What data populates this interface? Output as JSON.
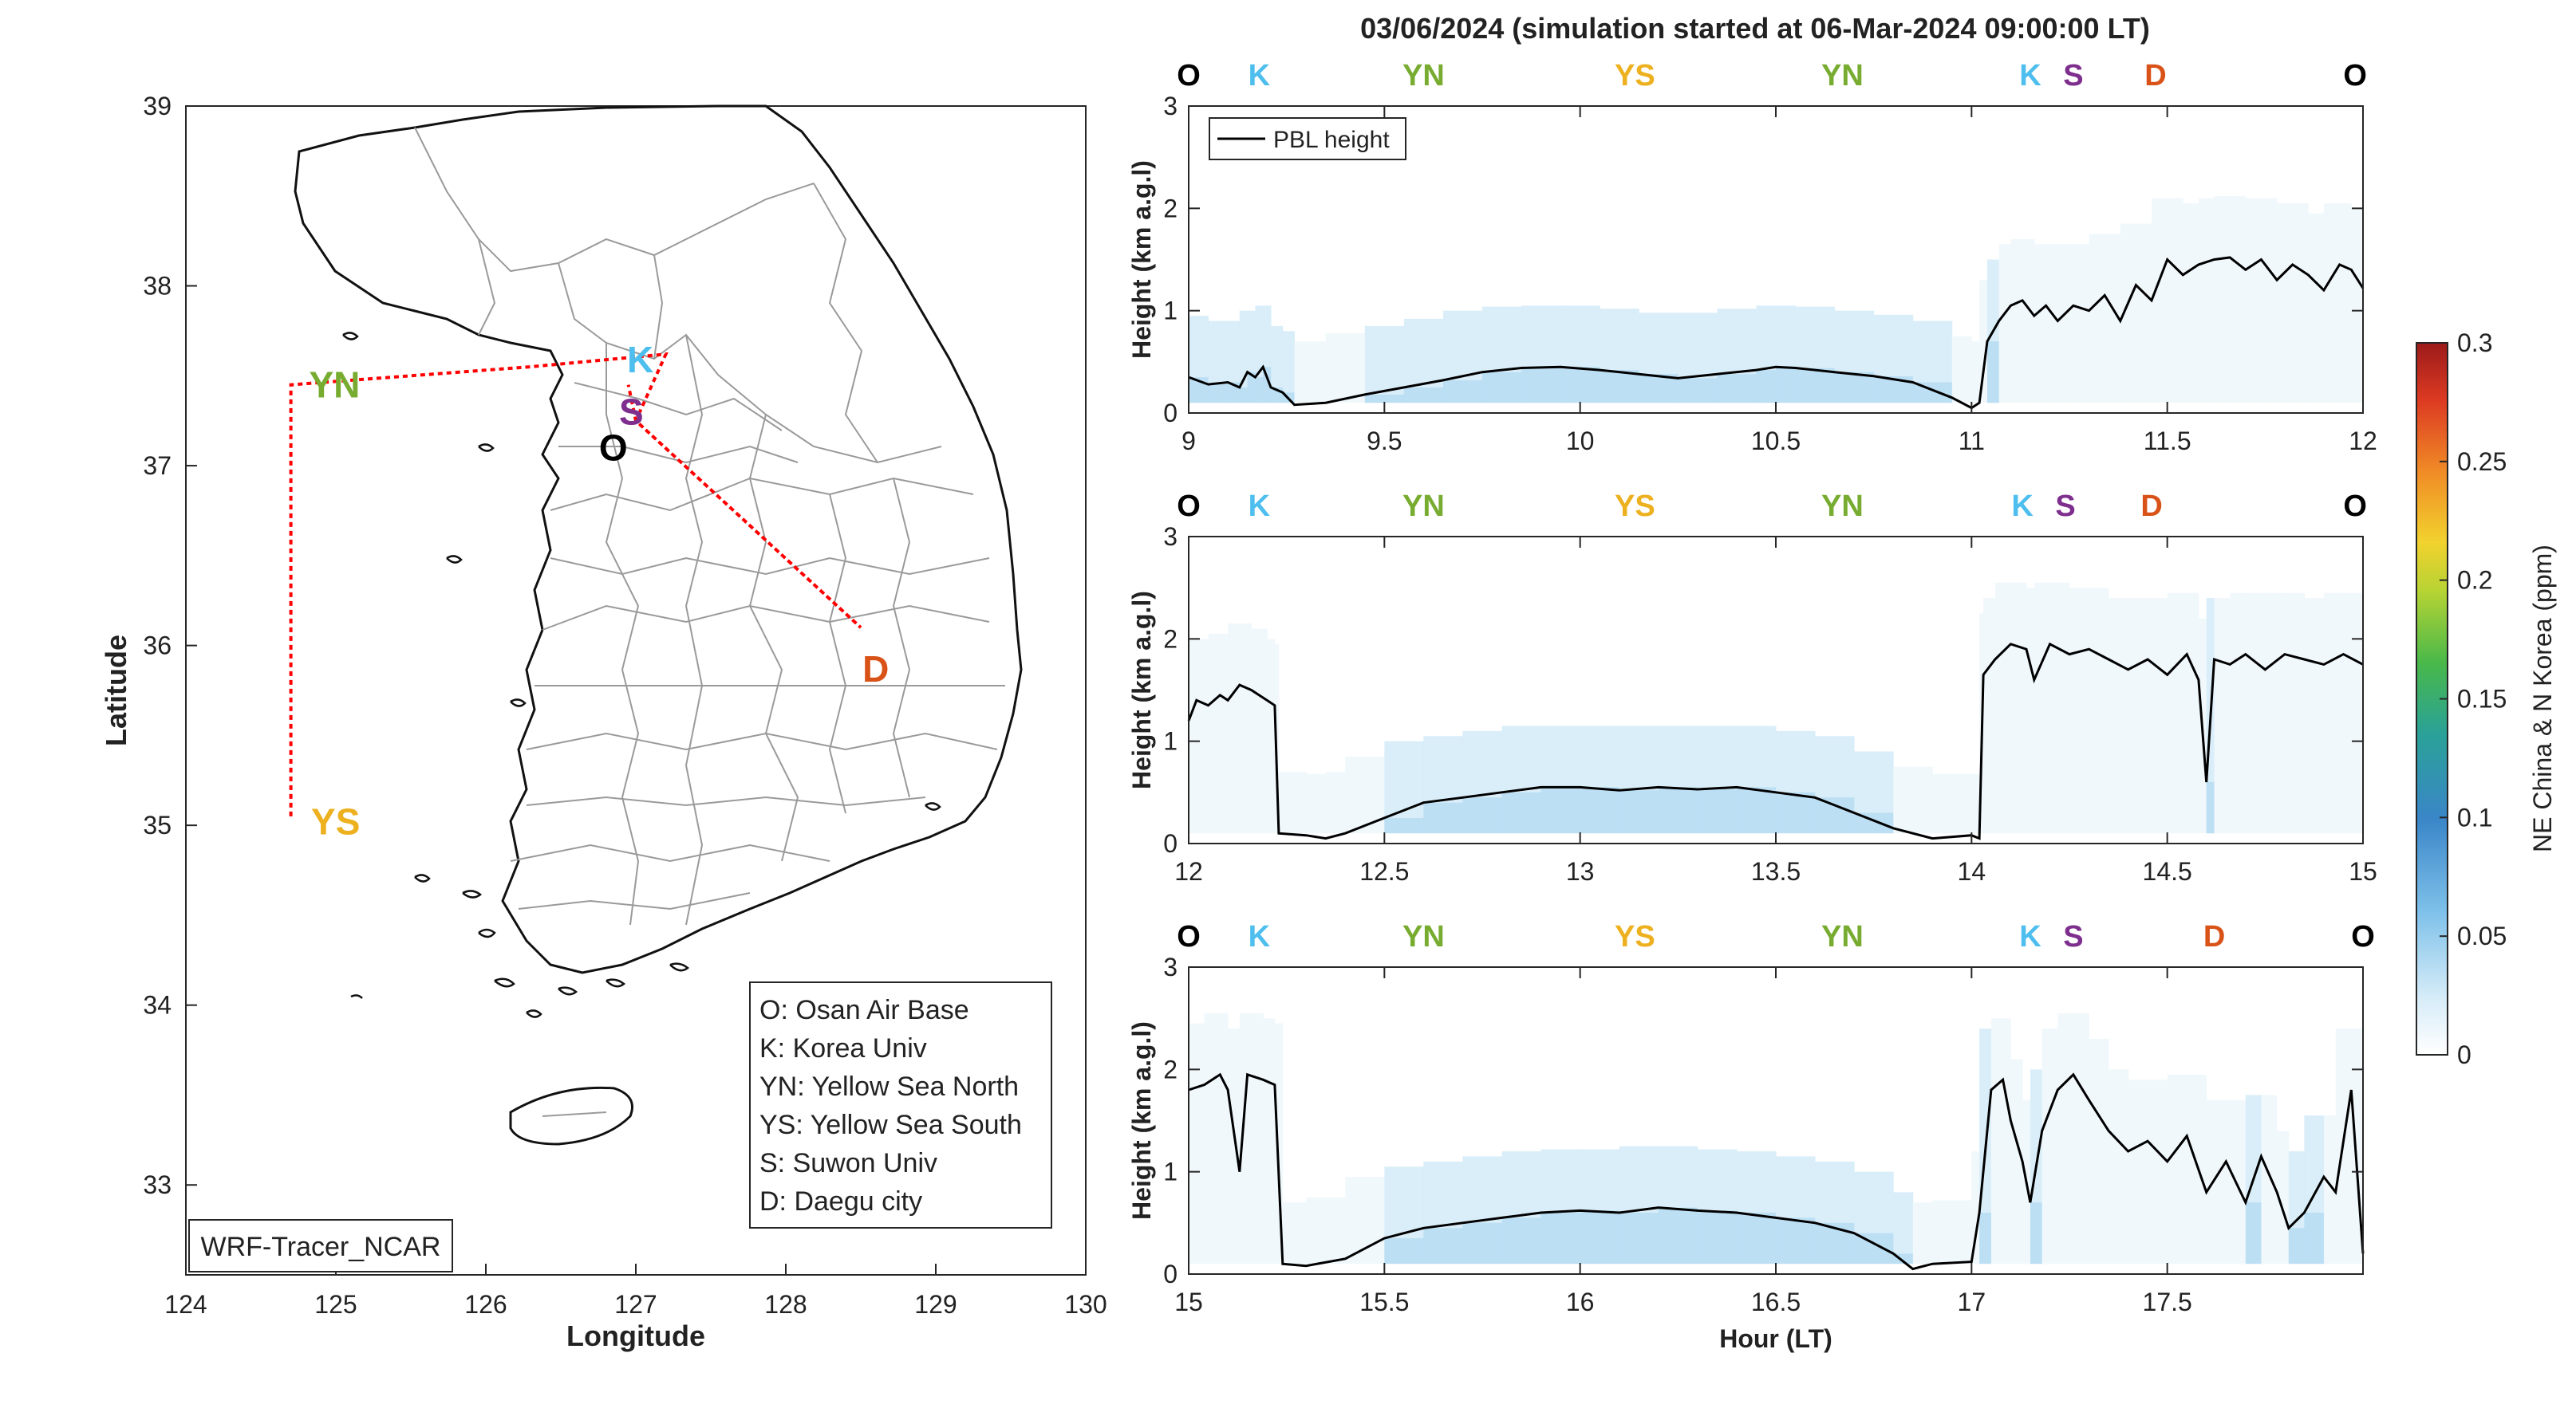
{
  "figure_title": "03/06/2024 (simulation started at 06-Mar-2024 09:00:00 LT)",
  "map": {
    "xlabel": "Longitude",
    "ylabel": "Latitude",
    "xlim": [
      124,
      130
    ],
    "ylim": [
      32.5,
      39
    ],
    "x_ticks": [
      "124",
      "125",
      "126",
      "127",
      "128",
      "129",
      "130"
    ],
    "y_ticks": [
      "33",
      "34",
      "35",
      "36",
      "37",
      "38",
      "39"
    ],
    "model_label": "WRF-Tracer_NCAR",
    "legend": [
      "O: Osan Air Base",
      "K: Korea Univ",
      "YN: Yellow Sea North",
      "YS: Yellow Sea South",
      "S: Suwon Univ",
      "D: Daegu city"
    ],
    "sites": [
      {
        "code": "K",
        "lon": 127.03,
        "lat": 37.59,
        "color": "#4DBEEE"
      },
      {
        "code": "S",
        "lon": 126.97,
        "lat": 37.3,
        "color": "#7E2F8E"
      },
      {
        "code": "O",
        "lon": 126.85,
        "lat": 37.1,
        "color": "#000000"
      },
      {
        "code": "D",
        "lon": 128.6,
        "lat": 35.87,
        "color": "#D95319"
      },
      {
        "code": "YN",
        "lon": 124.55,
        "lat": 37.45,
        "color": "#77AC30"
      },
      {
        "code": "YS",
        "lon": 124.55,
        "lat": 35.02,
        "color": "#EDB120"
      }
    ],
    "flight_track": [
      [
        124.7,
        35.05
      ],
      [
        124.7,
        37.45
      ],
      [
        126.3,
        37.55
      ],
      [
        127.2,
        37.62
      ],
      [
        127.0,
        37.25
      ],
      [
        128.5,
        36.1
      ],
      [
        127.0,
        37.25
      ],
      [
        126.95,
        37.45
      ]
    ]
  },
  "colorbar": {
    "label": "NE China & N Korea (ppm)",
    "ticks": [
      "0",
      "0.05",
      "0.1",
      "0.15",
      "0.2",
      "0.25",
      "0.3"
    ],
    "range": [
      0,
      0.3
    ]
  },
  "site_marker_colors": {
    "O": "#000000",
    "K": "#4DBEEE",
    "YN": "#77AC30",
    "YS": "#EDB120",
    "S": "#7E2F8E",
    "D": "#D95319"
  },
  "chart_data": [
    {
      "type": "line",
      "ylabel": "Height (km a.g.l)",
      "xlim": [
        9,
        12
      ],
      "ylim": [
        0,
        3
      ],
      "x_ticks": [
        "9",
        "9.5",
        "10",
        "10.5",
        "11",
        "11.5",
        "12"
      ],
      "y_ticks": [
        "0",
        "1",
        "2",
        "3"
      ],
      "legend": "PBL height",
      "site_markers": [
        {
          "code": "O",
          "x": 9.0
        },
        {
          "code": "K",
          "x": 9.18
        },
        {
          "code": "YN",
          "x": 9.6
        },
        {
          "code": "YS",
          "x": 10.14
        },
        {
          "code": "YN",
          "x": 10.67
        },
        {
          "code": "K",
          "x": 11.15
        },
        {
          "code": "S",
          "x": 11.26
        },
        {
          "code": "D",
          "x": 11.47
        },
        {
          "code": "O",
          "x": 11.98
        }
      ],
      "series": [
        {
          "name": "PBL height",
          "points": [
            [
              9.0,
              0.35
            ],
            [
              9.05,
              0.28
            ],
            [
              9.1,
              0.3
            ],
            [
              9.13,
              0.25
            ],
            [
              9.15,
              0.4
            ],
            [
              9.17,
              0.35
            ],
            [
              9.19,
              0.45
            ],
            [
              9.21,
              0.25
            ],
            [
              9.24,
              0.2
            ],
            [
              9.27,
              0.08
            ],
            [
              9.35,
              0.1
            ],
            [
              9.45,
              0.18
            ],
            [
              9.55,
              0.25
            ],
            [
              9.65,
              0.32
            ],
            [
              9.75,
              0.4
            ],
            [
              9.85,
              0.44
            ],
            [
              9.95,
              0.45
            ],
            [
              10.05,
              0.42
            ],
            [
              10.15,
              0.38
            ],
            [
              10.25,
              0.34
            ],
            [
              10.35,
              0.38
            ],
            [
              10.45,
              0.42
            ],
            [
              10.5,
              0.45
            ],
            [
              10.55,
              0.44
            ],
            [
              10.65,
              0.4
            ],
            [
              10.75,
              0.36
            ],
            [
              10.85,
              0.3
            ],
            [
              10.95,
              0.15
            ],
            [
              11.0,
              0.05
            ],
            [
              11.02,
              0.1
            ],
            [
              11.04,
              0.7
            ],
            [
              11.07,
              0.9
            ],
            [
              11.1,
              1.05
            ],
            [
              11.13,
              1.1
            ],
            [
              11.16,
              0.95
            ],
            [
              11.19,
              1.05
            ],
            [
              11.22,
              0.9
            ],
            [
              11.26,
              1.05
            ],
            [
              11.3,
              1.0
            ],
            [
              11.34,
              1.15
            ],
            [
              11.38,
              0.9
            ],
            [
              11.42,
              1.25
            ],
            [
              11.46,
              1.1
            ],
            [
              11.5,
              1.5
            ],
            [
              11.54,
              1.35
            ],
            [
              11.58,
              1.45
            ],
            [
              11.62,
              1.5
            ],
            [
              11.66,
              1.52
            ],
            [
              11.7,
              1.4
            ],
            [
              11.74,
              1.5
            ],
            [
              11.78,
              1.3
            ],
            [
              11.82,
              1.45
            ],
            [
              11.86,
              1.35
            ],
            [
              11.9,
              1.2
            ],
            [
              11.94,
              1.45
            ],
            [
              11.97,
              1.4
            ],
            [
              12.0,
              1.22
            ]
          ]
        }
      ]
    },
    {
      "type": "line",
      "ylabel": "Height (km a.g.l)",
      "xlim": [
        12,
        15
      ],
      "ylim": [
        0,
        3
      ],
      "x_ticks": [
        "12",
        "12.5",
        "13",
        "13.5",
        "14",
        "14.5",
        "15"
      ],
      "y_ticks": [
        "0",
        "1",
        "2",
        "3"
      ],
      "site_markers": [
        {
          "code": "O",
          "x": 12.0
        },
        {
          "code": "K",
          "x": 12.18
        },
        {
          "code": "YN",
          "x": 12.6
        },
        {
          "code": "YS",
          "x": 13.14
        },
        {
          "code": "YN",
          "x": 13.67
        },
        {
          "code": "K",
          "x": 14.13
        },
        {
          "code": "S",
          "x": 14.24
        },
        {
          "code": "D",
          "x": 14.46
        },
        {
          "code": "O",
          "x": 14.98
        }
      ],
      "series": [
        {
          "name": "PBL height",
          "points": [
            [
              12.0,
              1.2
            ],
            [
              12.02,
              1.4
            ],
            [
              12.05,
              1.35
            ],
            [
              12.08,
              1.45
            ],
            [
              12.1,
              1.4
            ],
            [
              12.13,
              1.55
            ],
            [
              12.16,
              1.5
            ],
            [
              12.2,
              1.4
            ],
            [
              12.22,
              1.35
            ],
            [
              12.23,
              0.1
            ],
            [
              12.3,
              0.08
            ],
            [
              12.35,
              0.05
            ],
            [
              12.4,
              0.1
            ],
            [
              12.5,
              0.25
            ],
            [
              12.6,
              0.4
            ],
            [
              12.7,
              0.45
            ],
            [
              12.8,
              0.5
            ],
            [
              12.9,
              0.55
            ],
            [
              13.0,
              0.55
            ],
            [
              13.1,
              0.52
            ],
            [
              13.2,
              0.55
            ],
            [
              13.3,
              0.53
            ],
            [
              13.4,
              0.55
            ],
            [
              13.5,
              0.5
            ],
            [
              13.6,
              0.45
            ],
            [
              13.7,
              0.3
            ],
            [
              13.8,
              0.15
            ],
            [
              13.9,
              0.05
            ],
            [
              14.0,
              0.08
            ],
            [
              14.02,
              0.05
            ],
            [
              14.03,
              1.65
            ],
            [
              14.06,
              1.8
            ],
            [
              14.1,
              1.95
            ],
            [
              14.14,
              1.9
            ],
            [
              14.16,
              1.6
            ],
            [
              14.2,
              1.95
            ],
            [
              14.25,
              1.85
            ],
            [
              14.3,
              1.9
            ],
            [
              14.35,
              1.8
            ],
            [
              14.4,
              1.7
            ],
            [
              14.45,
              1.8
            ],
            [
              14.5,
              1.65
            ],
            [
              14.55,
              1.85
            ],
            [
              14.58,
              1.6
            ],
            [
              14.6,
              0.6
            ],
            [
              14.62,
              1.8
            ],
            [
              14.66,
              1.75
            ],
            [
              14.7,
              1.85
            ],
            [
              14.75,
              1.7
            ],
            [
              14.8,
              1.85
            ],
            [
              14.85,
              1.8
            ],
            [
              14.9,
              1.75
            ],
            [
              14.95,
              1.85
            ],
            [
              15.0,
              1.75
            ]
          ]
        }
      ]
    },
    {
      "type": "line",
      "ylabel": "Height (km a.g.l)",
      "xlabel": "Hour (LT)",
      "xlim": [
        15,
        18
      ],
      "ylim": [
        0,
        3
      ],
      "x_ticks": [
        "15",
        "15.5",
        "16",
        "16.5",
        "17",
        "17.5"
      ],
      "y_ticks": [
        "0",
        "1",
        "2",
        "3"
      ],
      "site_markers": [
        {
          "code": "O",
          "x": 15.0
        },
        {
          "code": "K",
          "x": 15.18
        },
        {
          "code": "YN",
          "x": 15.6
        },
        {
          "code": "YS",
          "x": 16.14
        },
        {
          "code": "YN",
          "x": 16.67
        },
        {
          "code": "K",
          "x": 17.15
        },
        {
          "code": "S",
          "x": 17.26
        },
        {
          "code": "D",
          "x": 17.62
        },
        {
          "code": "O",
          "x": 18.0
        }
      ],
      "series": [
        {
          "name": "PBL height",
          "points": [
            [
              15.0,
              1.8
            ],
            [
              15.04,
              1.85
            ],
            [
              15.08,
              1.95
            ],
            [
              15.1,
              1.8
            ],
            [
              15.13,
              1.0
            ],
            [
              15.15,
              1.95
            ],
            [
              15.19,
              1.9
            ],
            [
              15.22,
              1.85
            ],
            [
              15.24,
              0.1
            ],
            [
              15.3,
              0.08
            ],
            [
              15.4,
              0.15
            ],
            [
              15.5,
              0.35
            ],
            [
              15.6,
              0.45
            ],
            [
              15.7,
              0.5
            ],
            [
              15.8,
              0.55
            ],
            [
              15.9,
              0.6
            ],
            [
              16.0,
              0.62
            ],
            [
              16.1,
              0.6
            ],
            [
              16.2,
              0.65
            ],
            [
              16.3,
              0.62
            ],
            [
              16.4,
              0.6
            ],
            [
              16.5,
              0.55
            ],
            [
              16.6,
              0.5
            ],
            [
              16.7,
              0.4
            ],
            [
              16.8,
              0.2
            ],
            [
              16.85,
              0.05
            ],
            [
              16.9,
              0.1
            ],
            [
              17.0,
              0.12
            ],
            [
              17.02,
              0.6
            ],
            [
              17.05,
              1.8
            ],
            [
              17.08,
              1.9
            ],
            [
              17.1,
              1.5
            ],
            [
              17.13,
              1.1
            ],
            [
              17.15,
              0.7
            ],
            [
              17.18,
              1.4
            ],
            [
              17.22,
              1.8
            ],
            [
              17.26,
              1.95
            ],
            [
              17.3,
              1.7
            ],
            [
              17.35,
              1.4
            ],
            [
              17.4,
              1.2
            ],
            [
              17.45,
              1.3
            ],
            [
              17.5,
              1.1
            ],
            [
              17.55,
              1.35
            ],
            [
              17.6,
              0.8
            ],
            [
              17.65,
              1.1
            ],
            [
              17.7,
              0.7
            ],
            [
              17.74,
              1.15
            ],
            [
              17.78,
              0.8
            ],
            [
              17.81,
              0.45
            ],
            [
              17.85,
              0.6
            ],
            [
              17.9,
              0.95
            ],
            [
              17.93,
              0.8
            ],
            [
              17.97,
              1.8
            ],
            [
              18.0,
              0.2
            ]
          ]
        }
      ]
    }
  ]
}
